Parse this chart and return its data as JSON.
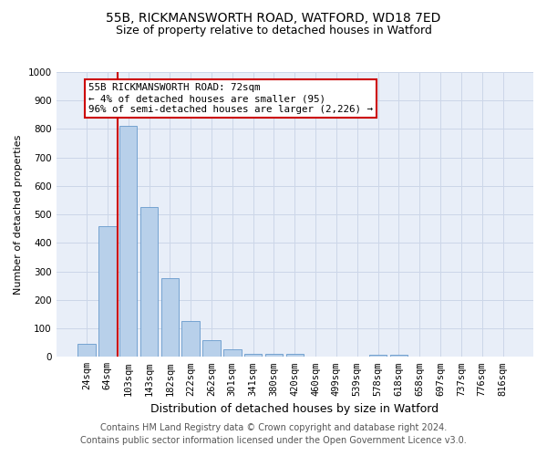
{
  "title1": "55B, RICKMANSWORTH ROAD, WATFORD, WD18 7ED",
  "title2": "Size of property relative to detached houses in Watford",
  "xlabel": "Distribution of detached houses by size in Watford",
  "ylabel": "Number of detached properties",
  "categories": [
    "24sqm",
    "64sqm",
    "103sqm",
    "143sqm",
    "182sqm",
    "222sqm",
    "262sqm",
    "301sqm",
    "341sqm",
    "380sqm",
    "420sqm",
    "460sqm",
    "499sqm",
    "539sqm",
    "578sqm",
    "618sqm",
    "658sqm",
    "697sqm",
    "737sqm",
    "776sqm",
    "816sqm"
  ],
  "bar_values": [
    45,
    460,
    810,
    525,
    275,
    125,
    60,
    25,
    12,
    12,
    12,
    0,
    0,
    0,
    8,
    8,
    0,
    0,
    0,
    0,
    0
  ],
  "bar_color": "#b8d0ea",
  "bar_edge_color": "#6699cc",
  "grid_color": "#ccd6e8",
  "background_color": "#e8eef8",
  "vline_color": "#cc0000",
  "vline_x_index": 1.5,
  "annotation_text": "55B RICKMANSWORTH ROAD: 72sqm\n← 4% of detached houses are smaller (95)\n96% of semi-detached houses are larger (2,226) →",
  "annotation_box_color": "#cc0000",
  "footer_line1": "Contains HM Land Registry data © Crown copyright and database right 2024.",
  "footer_line2": "Contains public sector information licensed under the Open Government Licence v3.0.",
  "ylim": [
    0,
    1000
  ],
  "yticks": [
    0,
    100,
    200,
    300,
    400,
    500,
    600,
    700,
    800,
    900,
    1000
  ],
  "title1_fontsize": 10,
  "title2_fontsize": 9,
  "xlabel_fontsize": 9,
  "ylabel_fontsize": 8,
  "tick_fontsize": 7.5,
  "footer_fontsize": 7,
  "ann_fontsize": 7.8
}
